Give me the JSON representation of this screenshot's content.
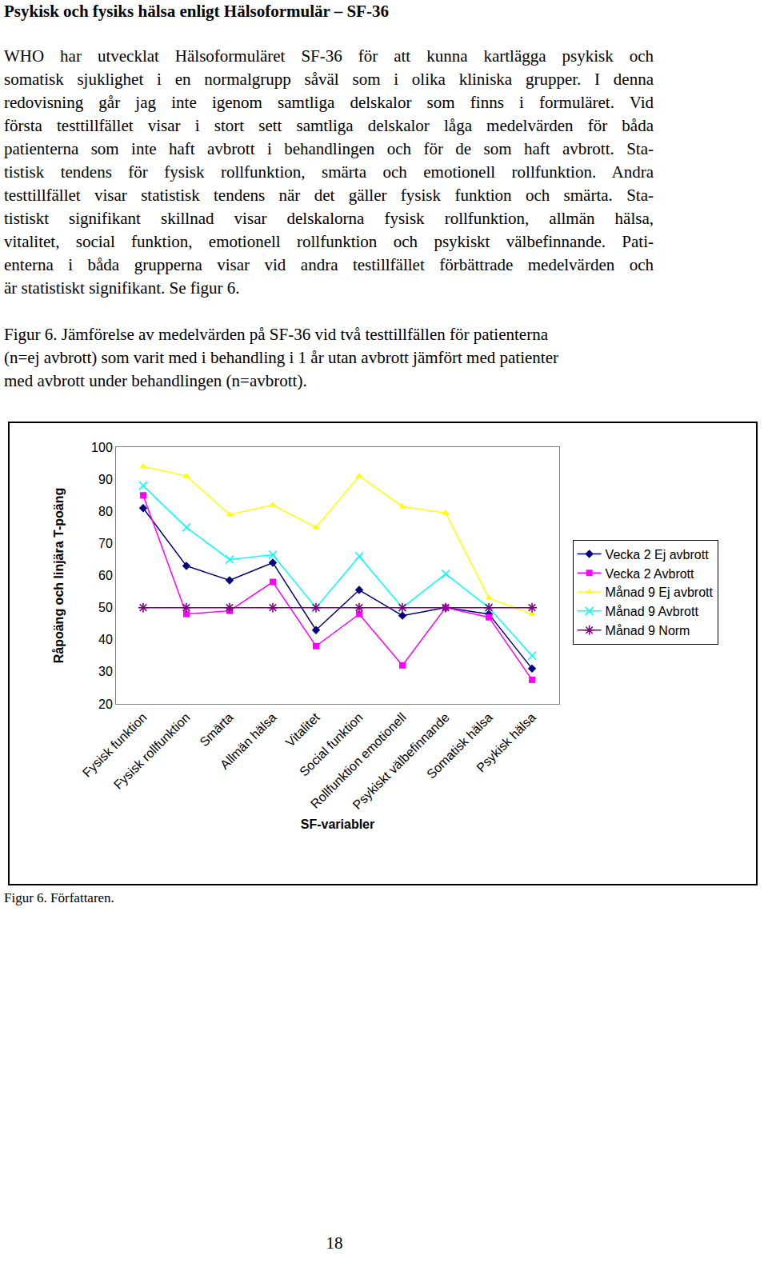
{
  "page": {
    "heading": "Psykisk och fysiks hälsa enligt Hälsoformulär – SF-36",
    "paragraph_lines": [
      "WHO har utvecklat Hälsoformuläret SF-36 för att kunna kartlägga psykisk och",
      "somatisk sjuklighet i en normalgrupp såväl som i olika kliniska grupper. I denna",
      "redovisning går jag inte igenom samtliga delskalor som finns i formuläret. Vid",
      "första testtillfället visar i stort sett samtliga delskalor låga medelvärden för båda",
      "patienterna som inte haft avbrott i behandlingen och för de som haft avbrott. Sta-",
      "tistisk tendens för fysisk rollfunktion, smärta och emotionell rollfunktion. Andra",
      "testtillfället visar statistisk tendens när det gäller fysisk funktion och smärta. Sta-",
      "tistiskt signifikant skillnad visar delskalorna fysisk rollfunktion, allmän hälsa,",
      "vitalitet, social funktion, emotionell rollfunktion och psykiskt välbefinnande. Pati-",
      "enterna i båda grupperna visar vid andra testillfället förbättrade medelvärden och",
      "är statistiskt signifikant. Se figur 6."
    ],
    "caption_lines": [
      "Figur 6. Jämförelse av medelvärden på SF-36 vid två testtillfällen för patienterna",
      "(n=ej avbrott) som varit med i behandling i 1 år utan avbrott jämfört med patienter",
      "med avbrott under behandlingen (n=avbrott)."
    ],
    "source": "Figur 6. Författaren.",
    "page_number": "18"
  },
  "chart_data": {
    "type": "line",
    "x_label": "SF-variabler",
    "y_label": "Råpoäng och linjära T-poäng",
    "categories": [
      "Fysisk funktion",
      "Fysisk rollfunktion",
      "Smärta",
      "Allmän hälsa",
      "Vitalitet",
      "Social funktion",
      "Rollfunktion emotionell",
      "Psykiskt välbefinnande",
      "Somatisk hälsa",
      "Psykisk hälsa"
    ],
    "series": [
      {
        "name": "Vecka 2 Ej avbrott",
        "color": "#000080",
        "marker": "diamond",
        "line_style": "solid",
        "values": [
          81,
          63,
          58.5,
          64,
          43,
          55.5,
          47.5,
          50,
          48,
          31
        ]
      },
      {
        "name": "Vecka 2 Avbrott",
        "color": "#ff00ff",
        "marker": "square",
        "line_style": "solid",
        "values": [
          85,
          48,
          49,
          58,
          38,
          48,
          32,
          50,
          47,
          27.5
        ]
      },
      {
        "name": "Månad 9 Ej avbrott",
        "color": "#ffff00",
        "marker": "triangle-up",
        "line_style": "solid",
        "values": [
          94,
          91,
          79,
          82,
          75,
          91,
          81.5,
          79.5,
          53,
          48
        ]
      },
      {
        "name": "Månad 9 Avbrott",
        "color": "#00ffff",
        "marker": "x",
        "line_style": "solid",
        "values": [
          88,
          75,
          65,
          66.5,
          50,
          66,
          50,
          60.5,
          50,
          35
        ]
      },
      {
        "name": "Månad 9 Norm",
        "color": "#800080",
        "marker": "asterisk",
        "line_style": "solid",
        "values": [
          50,
          50,
          50,
          50,
          50,
          50,
          50,
          50,
          50,
          50
        ]
      }
    ],
    "ylim": [
      20,
      100
    ],
    "yticks": [
      20,
      30,
      40,
      50,
      60,
      70,
      80,
      90,
      100
    ],
    "grid": false,
    "legend": "right"
  }
}
